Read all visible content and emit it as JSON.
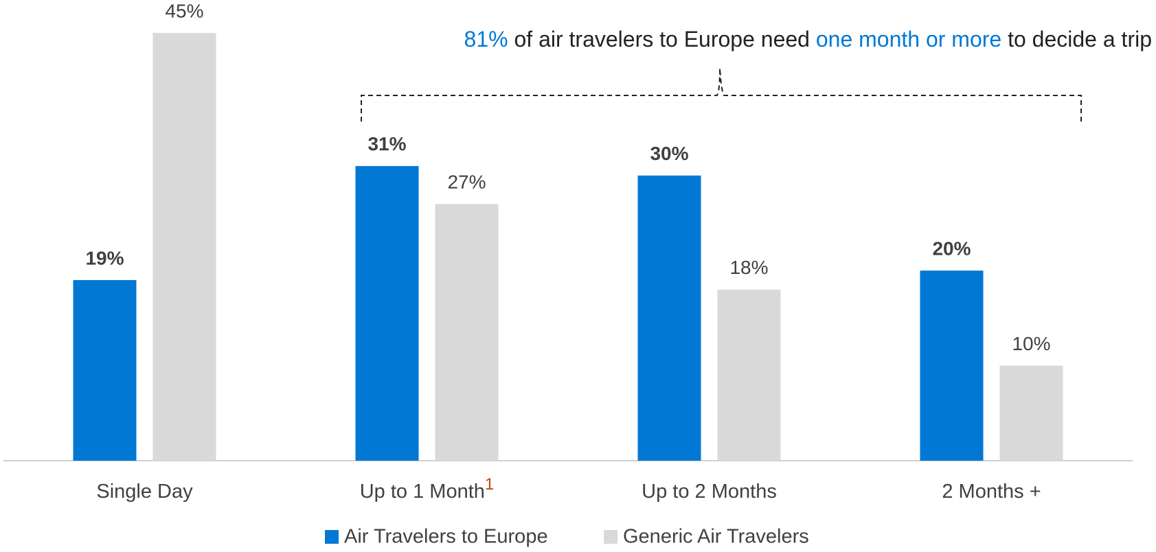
{
  "chart_data": {
    "type": "bar",
    "annotation": [
      {
        "text": "81%",
        "highlight": true
      },
      {
        "text": " of air travelers to Europe need ",
        "highlight": false
      },
      {
        "text": "one month or more",
        "highlight": true
      },
      {
        "text": " to decide a trip",
        "highlight": false
      }
    ],
    "highlight_color": "#0078d4",
    "categories": [
      "Single Day",
      "Up to 1 Month",
      "Up to 2 Months",
      "2 Months +"
    ],
    "category_footnotes": [
      null,
      "1",
      null,
      null
    ],
    "footnote_color": "#c8400a",
    "series": [
      {
        "name": "Air Travelers to Europe",
        "color": "#0078d4",
        "bold_labels": true,
        "values": [
          19,
          31,
          30,
          20
        ],
        "value_labels": [
          "19%",
          "31%",
          "30%",
          "20%"
        ]
      },
      {
        "name": "Generic Air Travelers",
        "color": "#d9d9d9",
        "bold_labels": false,
        "values": [
          45,
          27,
          18,
          10
        ],
        "value_labels": [
          "45%",
          "27%",
          "18%",
          "10%"
        ]
      }
    ],
    "ylim": [
      0,
      45
    ],
    "grid": false,
    "legend": "bottom"
  }
}
